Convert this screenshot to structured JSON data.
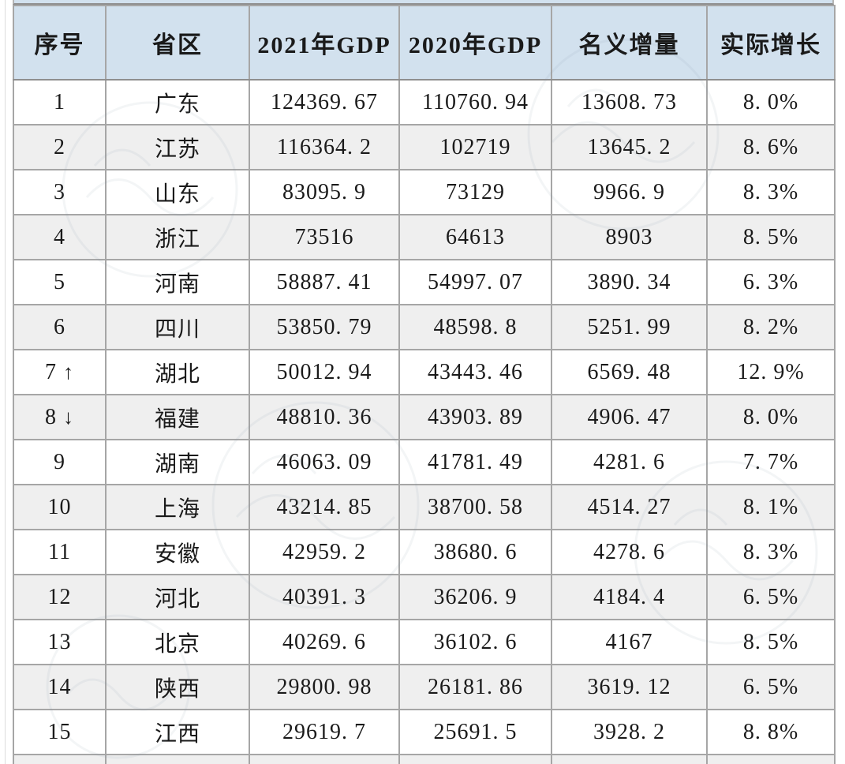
{
  "chart_data": {
    "type": "table",
    "columns": [
      "序号",
      "省区",
      "2021年GDP",
      "2020年GDP",
      "名义增量",
      "实际增长"
    ],
    "rows": [
      [
        "1",
        "广东",
        "124369.67",
        "110760.94",
        "13608.73",
        "8.0%"
      ],
      [
        "2",
        "江苏",
        "116364.2",
        "102719",
        "13645.2",
        "8.6%"
      ],
      [
        "3",
        "山东",
        "83095.9",
        "73129",
        "9966.9",
        "8.3%"
      ],
      [
        "4",
        "浙江",
        "73516",
        "64613",
        "8903",
        "8.5%"
      ],
      [
        "5",
        "河南",
        "58887.41",
        "54997.07",
        "3890.34",
        "6.3%"
      ],
      [
        "6",
        "四川",
        "53850.79",
        "48598.8",
        "5251.99",
        "8.2%"
      ],
      [
        "7↑",
        "湖北",
        "50012.94",
        "43443.46",
        "6569.48",
        "12.9%"
      ],
      [
        "8↓",
        "福建",
        "48810.36",
        "43903.89",
        "4906.47",
        "8.0%"
      ],
      [
        "9",
        "湖南",
        "46063.09",
        "41781.49",
        "4281.6",
        "7.7%"
      ],
      [
        "10",
        "上海",
        "43214.85",
        "38700.58",
        "4514.27",
        "8.1%"
      ],
      [
        "11",
        "安徽",
        "42959.2",
        "38680.6",
        "4278.6",
        "8.3%"
      ],
      [
        "12",
        "河北",
        "40391.3",
        "36206.9",
        "4184.4",
        "6.5%"
      ],
      [
        "13",
        "北京",
        "40269.6",
        "36102.6",
        "4167",
        "8.5%"
      ],
      [
        "14",
        "陕西",
        "29800.98",
        "26181.86",
        "3619.12",
        "6.5%"
      ],
      [
        "15",
        "江西",
        "29619.7",
        "25691.5",
        "3928.2",
        "8.8%"
      ]
    ]
  },
  "colors": {
    "header_bg": "#d2e1ee",
    "row_alt_bg": "#efefef",
    "border": "#a6a6a6",
    "text": "#1a1a1a"
  }
}
